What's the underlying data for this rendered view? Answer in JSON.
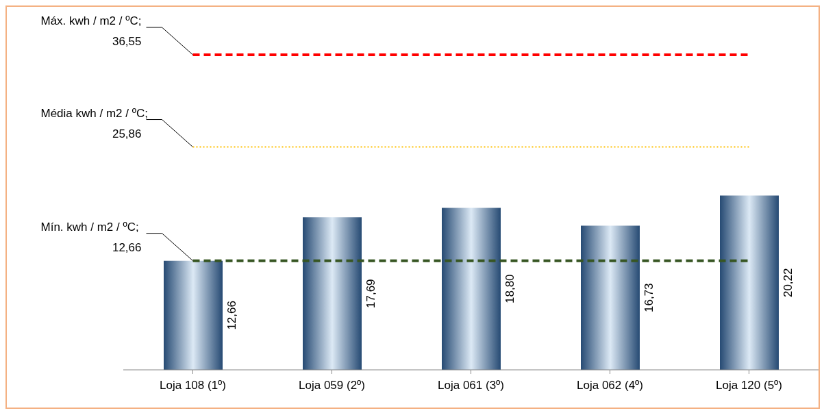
{
  "chart_data": {
    "type": "bar",
    "categories": [
      "Loja 108 (1º)",
      "Loja 059 (2º)",
      "Loja 061 (3º)",
      "Loja 062 (4º)",
      "Loja 120 (5º)"
    ],
    "values": [
      12.66,
      17.69,
      18.8,
      16.73,
      20.22
    ],
    "value_labels": [
      "12,66",
      "17,69",
      "18,80",
      "16,73",
      "20,22"
    ],
    "color": "#264a73",
    "ref_lines": [
      {
        "axis": "y",
        "value": 36.55,
        "label": "Máx. kwh / m2 / ºC; 36,55",
        "color": "#ff0000",
        "line_style": "dashed"
      },
      {
        "axis": "y",
        "value": 25.86,
        "label": "Média kwh / m2 / ºC; 25,86",
        "color": "#ffc000",
        "line_style": "dotted"
      },
      {
        "axis": "y",
        "value": 12.66,
        "label": "Mín. kwh / m2 / ºC; 12,66",
        "color": "#375623",
        "line_style": "dashed"
      }
    ],
    "grid": false,
    "legend": false
  }
}
